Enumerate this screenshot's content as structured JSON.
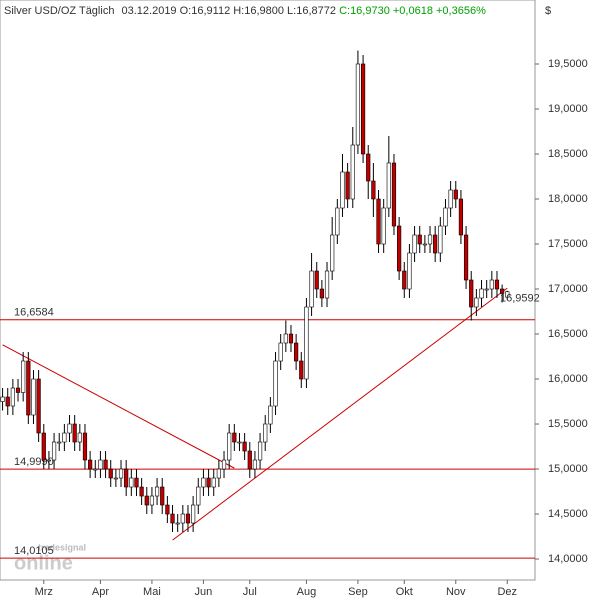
{
  "chart_data": {
    "type": "candlestick",
    "title": "Silver USD/OZ Täglich",
    "date": "03.12.2019",
    "ohl": "O:16,9112 H:16,9800 L:16,8772",
    "change": "C:16,9730 +0,0618 +0,3656%",
    "change_color": "#00a000",
    "currency": "$",
    "watermark": {
      "brand": "tradesignal",
      "product": "online"
    },
    "categories": [
      null,
      null,
      null,
      null,
      null,
      null,
      null,
      null,
      "Mrz",
      null,
      null,
      null,
      null,
      null,
      null,
      null,
      null,
      null,
      null,
      "Apr",
      null,
      null,
      null,
      null,
      null,
      null,
      null,
      null,
      null,
      "Mai",
      null,
      null,
      null,
      null,
      null,
      null,
      null,
      null,
      null,
      "Jun",
      null,
      null,
      null,
      null,
      null,
      null,
      null,
      null,
      "Jul",
      null,
      null,
      null,
      null,
      null,
      null,
      null,
      null,
      null,
      null,
      "Aug",
      null,
      null,
      null,
      null,
      null,
      null,
      null,
      null,
      null,
      "Sep",
      null,
      null,
      null,
      null,
      null,
      null,
      null,
      null,
      "Okt",
      null,
      null,
      null,
      null,
      null,
      null,
      null,
      null,
      null,
      "Nov",
      null,
      null,
      null,
      null,
      null,
      null,
      null,
      null,
      null,
      "Dez"
    ],
    "open": [
      15.75,
      15.8,
      15.7,
      15.9,
      15.85,
      16.2,
      15.6,
      16.0,
      15.4,
      15.1,
      15.1,
      15.3,
      15.3,
      15.4,
      15.5,
      15.3,
      15.4,
      15.1,
      15.0,
      15.0,
      15.1,
      15.0,
      14.9,
      14.9,
      15.0,
      14.8,
      14.9,
      14.8,
      14.7,
      14.6,
      14.7,
      14.8,
      14.6,
      14.5,
      14.4,
      14.4,
      14.5,
      14.4,
      14.6,
      14.8,
      14.9,
      14.8,
      14.9,
      15.0,
      15.1,
      15.4,
      15.3,
      15.3,
      15.2,
      15.0,
      15.1,
      15.3,
      15.5,
      15.7,
      16.2,
      16.4,
      16.5,
      16.4,
      16.2,
      16.0,
      16.8,
      17.2,
      17.0,
      16.9,
      17.2,
      17.6,
      17.9,
      18.3,
      18.0,
      18.6,
      19.5,
      18.5,
      18.2,
      18.0,
      17.5,
      17.9,
      18.4,
      17.7,
      17.2,
      17.0,
      17.4,
      17.6,
      17.5,
      17.5,
      17.6,
      17.4,
      17.7,
      17.9,
      18.1,
      18.0,
      17.6,
      17.1,
      16.8,
      16.9,
      17.0,
      17.0,
      17.1,
      17.0,
      16.91
    ],
    "high": [
      15.9,
      15.9,
      16.0,
      16.0,
      16.3,
      16.3,
      16.1,
      16.1,
      15.5,
      15.2,
      15.4,
      15.4,
      15.5,
      15.6,
      15.6,
      15.5,
      15.5,
      15.2,
      15.1,
      15.2,
      15.2,
      15.1,
      15.0,
      15.1,
      15.1,
      15.0,
      15.0,
      14.9,
      14.8,
      14.8,
      14.9,
      14.9,
      14.7,
      14.6,
      14.5,
      14.6,
      14.6,
      14.7,
      14.9,
      15.0,
      15.0,
      15.0,
      15.1,
      15.2,
      15.5,
      15.5,
      15.4,
      15.4,
      15.3,
      15.2,
      15.4,
      15.6,
      15.8,
      16.3,
      16.5,
      16.65,
      16.6,
      16.5,
      16.3,
      16.9,
      17.4,
      17.3,
      17.1,
      17.3,
      17.8,
      18.0,
      18.5,
      18.4,
      18.8,
      19.65,
      19.6,
      18.6,
      18.4,
      18.1,
      18.0,
      18.7,
      18.5,
      17.8,
      17.3,
      17.5,
      17.7,
      17.7,
      17.6,
      17.7,
      17.7,
      17.8,
      18.0,
      18.2,
      18.2,
      18.1,
      17.7,
      17.2,
      17.0,
      17.1,
      17.1,
      17.2,
      17.2,
      17.05,
      16.98
    ],
    "low": [
      15.65,
      15.6,
      15.6,
      15.75,
      15.75,
      15.5,
      15.5,
      15.3,
      15.0,
      15.0,
      15.0,
      15.2,
      15.2,
      15.3,
      15.2,
      15.2,
      15.0,
      14.9,
      14.9,
      14.9,
      14.9,
      14.8,
      14.8,
      14.8,
      14.7,
      14.7,
      14.7,
      14.6,
      14.5,
      14.5,
      14.6,
      14.5,
      14.4,
      14.3,
      14.3,
      14.3,
      14.3,
      14.3,
      14.5,
      14.7,
      14.7,
      14.7,
      14.8,
      14.9,
      15.0,
      15.2,
      15.2,
      15.1,
      14.9,
      14.9,
      15.0,
      15.2,
      15.4,
      15.6,
      16.1,
      16.3,
      16.3,
      16.1,
      15.9,
      15.9,
      16.7,
      16.9,
      16.8,
      16.8,
      17.1,
      17.5,
      17.8,
      17.9,
      17.9,
      18.5,
      18.4,
      18.0,
      17.8,
      17.4,
      17.4,
      17.8,
      17.6,
      17.1,
      16.9,
      16.9,
      17.3,
      17.4,
      17.4,
      17.4,
      17.3,
      17.3,
      17.6,
      17.8,
      17.9,
      17.5,
      17.0,
      16.65,
      16.7,
      16.8,
      16.9,
      16.9,
      16.9,
      16.85,
      16.88
    ],
    "close": [
      15.8,
      15.7,
      15.9,
      15.85,
      16.2,
      15.6,
      16.0,
      15.4,
      15.1,
      15.1,
      15.3,
      15.3,
      15.4,
      15.5,
      15.3,
      15.4,
      15.1,
      15.0,
      15.0,
      15.1,
      15.0,
      14.9,
      14.9,
      15.0,
      14.8,
      14.9,
      14.8,
      14.7,
      14.6,
      14.7,
      14.8,
      14.6,
      14.5,
      14.4,
      14.4,
      14.5,
      14.4,
      14.6,
      14.8,
      14.9,
      14.8,
      14.9,
      15.0,
      15.1,
      15.4,
      15.3,
      15.3,
      15.2,
      15.0,
      15.1,
      15.3,
      15.5,
      15.7,
      16.2,
      16.4,
      16.5,
      16.4,
      16.2,
      16.0,
      16.8,
      17.2,
      17.0,
      16.9,
      17.2,
      17.6,
      17.9,
      18.3,
      18.0,
      18.6,
      19.5,
      18.5,
      18.2,
      18.0,
      17.5,
      17.9,
      18.4,
      17.7,
      17.2,
      17.0,
      17.4,
      17.6,
      17.5,
      17.5,
      17.6,
      17.4,
      17.7,
      17.9,
      18.1,
      18.0,
      17.6,
      17.1,
      16.8,
      16.9,
      17.0,
      17.0,
      17.1,
      17.0,
      16.95,
      16.97
    ],
    "up_color": "#ffffff",
    "down_color": "#c00000",
    "wick_color": "#000000",
    "ylim": [
      13.767,
      20.211
    ],
    "yticks": [
      {
        "value": 14,
        "label": "14,0000"
      },
      {
        "value": 14.5,
        "label": "14,5000"
      },
      {
        "value": 15,
        "label": "15,0000"
      },
      {
        "value": 15.5,
        "label": "15,5000"
      },
      {
        "value": 16,
        "label": "16,0000"
      },
      {
        "value": 16.5,
        "label": "16,5000"
      },
      {
        "value": 17,
        "label": "17,0000"
      },
      {
        "value": 17.5,
        "label": "17,5000"
      },
      {
        "value": 18,
        "label": "18,0000"
      },
      {
        "value": 18.5,
        "label": "18,5000"
      },
      {
        "value": 19,
        "label": "19,0000"
      },
      {
        "value": 19.5,
        "label": "19,5000"
      }
    ],
    "levels": [
      {
        "value": 16.6584,
        "label": "16,6584"
      },
      {
        "value": 14.999,
        "label": "14,9990"
      },
      {
        "value": 14.0105,
        "label": "14,0105"
      }
    ],
    "level_color": "#cc0000",
    "last_price": {
      "value": 16.9592,
      "label": "16,9592"
    },
    "trendlines": [
      {
        "from": [
          0,
          16.38
        ],
        "to": [
          45,
          15.01
        ]
      },
      {
        "from": [
          33,
          14.21
        ],
        "to": [
          98,
          17.01
        ]
      }
    ]
  }
}
